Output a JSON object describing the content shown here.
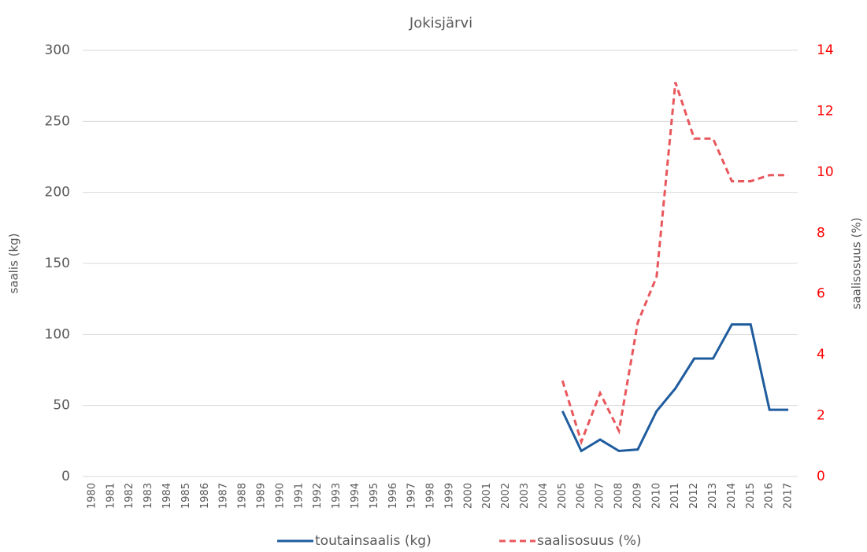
{
  "chart_data": {
    "type": "line",
    "title": "Jokisjärvi",
    "y_label": "saalis (kg)",
    "y2_label": "saalisosuus (%)",
    "categories": [
      "1980",
      "1981",
      "1982",
      "1983",
      "1984",
      "1985",
      "1986",
      "1987",
      "1988",
      "1989",
      "1990",
      "1991",
      "1992",
      "1993",
      "1994",
      "1995",
      "1996",
      "1997",
      "1998",
      "1999",
      "2000",
      "2001",
      "2002",
      "2003",
      "2004",
      "2005",
      "2006",
      "2007",
      "2008",
      "2009",
      "2010",
      "2011",
      "2012",
      "2013",
      "2014",
      "2015",
      "2016",
      "2017"
    ],
    "series": [
      {
        "name": "toutainsaalis (kg)",
        "color": "#1f5c9e",
        "dashed": false,
        "values": [
          null,
          null,
          null,
          null,
          null,
          null,
          null,
          null,
          null,
          null,
          null,
          null,
          null,
          null,
          null,
          null,
          null,
          null,
          null,
          null,
          null,
          null,
          null,
          null,
          null,
          46,
          18,
          26,
          18,
          19,
          46,
          62,
          83,
          83,
          107,
          107,
          47,
          47
        ]
      },
      {
        "name": "saalisosuus (%)",
        "color": "#e8575c",
        "dashed": true,
        "axis": "y2",
        "values": [
          null,
          null,
          null,
          null,
          null,
          null,
          null,
          null,
          null,
          null,
          null,
          null,
          null,
          null,
          null,
          null,
          null,
          null,
          null,
          null,
          null,
          null,
          null,
          null,
          null,
          3.15,
          1.14,
          2.74,
          1.5,
          5.06,
          6.56,
          12.95,
          11.1,
          11.1,
          9.7,
          9.7,
          9.9,
          9.9
        ]
      }
    ],
    "ylim": [
      0,
      300
    ],
    "yticks": [
      0,
      50,
      100,
      150,
      200,
      250,
      300
    ],
    "y2lim": [
      0,
      14
    ],
    "y2ticks": [
      0,
      2,
      4,
      6,
      8,
      10,
      12,
      14
    ],
    "y2_tick_color": "#ff0000",
    "grid": true,
    "legend": "bottom"
  }
}
